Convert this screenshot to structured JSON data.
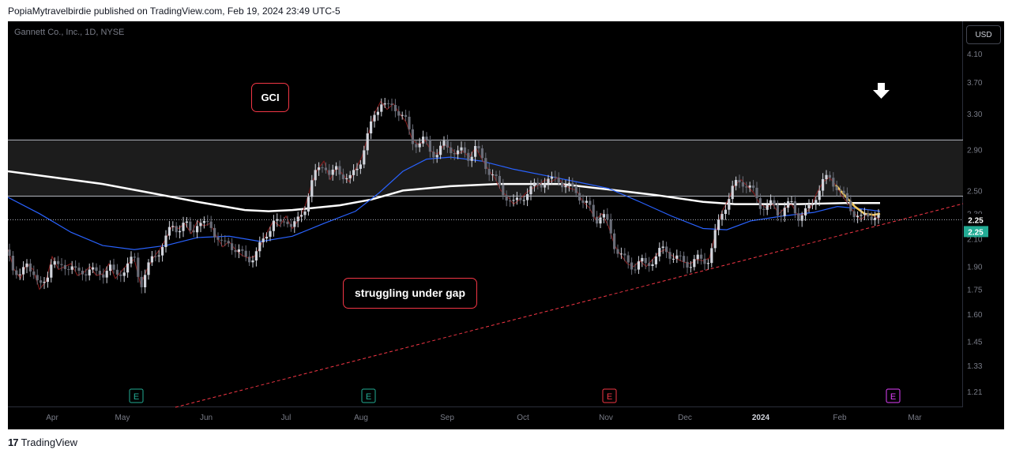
{
  "header": {
    "publish_line": "PopiaMytravelbirdie published on TradingView.com, Feb 19, 2024 23:49 UTC-5"
  },
  "chart_data": {
    "type": "candlestick",
    "title": "Gannett Co., Inc., 1D, NYSE",
    "currency": "USD",
    "x_ticks": [
      "Apr",
      "May",
      "Jun",
      "Jul",
      "Aug",
      "Sep",
      "Oct",
      "Nov",
      "Dec",
      "2024",
      "Feb",
      "Mar"
    ],
    "y_ticks": [
      4.1,
      3.7,
      3.3,
      2.9,
      2.5,
      2.3,
      2.1,
      1.9,
      1.75,
      1.6,
      1.45,
      1.33,
      1.21
    ],
    "y_scale": "log",
    "ylim": [
      1.15,
      4.45
    ],
    "last_price": 2.25,
    "last_price_labels": [
      "2.25",
      "2.25"
    ],
    "annotations": [
      {
        "text": "GCI"
      },
      {
        "text": "struggling under gap"
      }
    ],
    "gap_zone": {
      "upper": 3.0,
      "lower": 2.45
    },
    "trendline": {
      "from": {
        "date": "2023-04-22",
        "price": 1.18
      },
      "to": {
        "date": "2024-02-25",
        "price": 2.38
      }
    },
    "earnings_markers": [
      {
        "date": "2023-05",
        "label": "E",
        "color": "#22ab94"
      },
      {
        "date": "2023-08",
        "label": "E",
        "color": "#22ab94"
      },
      {
        "date": "2023-11",
        "label": "E",
        "color": "#f23645"
      },
      {
        "date": "2024-02-23",
        "label": "E",
        "color": "#e040fb"
      }
    ],
    "close_path": [
      [
        0,
        2.02
      ],
      [
        8,
        1.88
      ],
      [
        16,
        1.82
      ],
      [
        24,
        1.92
      ],
      [
        32,
        1.88
      ],
      [
        40,
        1.75
      ],
      [
        48,
        1.8
      ],
      [
        56,
        1.97
      ],
      [
        64,
        1.88
      ],
      [
        72,
        1.9
      ],
      [
        80,
        1.92
      ],
      [
        88,
        1.84
      ],
      [
        96,
        1.86
      ],
      [
        104,
        1.9
      ],
      [
        112,
        1.84
      ],
      [
        120,
        1.85
      ],
      [
        128,
        1.92
      ],
      [
        136,
        1.82
      ],
      [
        144,
        1.87
      ],
      [
        152,
        1.92
      ],
      [
        160,
        1.95
      ],
      [
        168,
        1.78
      ],
      [
        176,
        1.88
      ],
      [
        184,
        1.96
      ],
      [
        192,
        2.02
      ],
      [
        200,
        2.1
      ],
      [
        208,
        2.2
      ],
      [
        216,
        2.18
      ],
      [
        224,
        2.22
      ],
      [
        232,
        2.14
      ],
      [
        240,
        2.24
      ],
      [
        248,
        2.2
      ],
      [
        256,
        2.22
      ],
      [
        264,
        2.12
      ],
      [
        272,
        2.04
      ],
      [
        280,
        2.08
      ],
      [
        288,
        2.02
      ],
      [
        296,
        1.98
      ],
      [
        304,
        1.96
      ],
      [
        312,
        1.97
      ],
      [
        320,
        2.05
      ],
      [
        328,
        2.15
      ],
      [
        336,
        2.24
      ],
      [
        344,
        2.2
      ],
      [
        352,
        2.28
      ],
      [
        360,
        2.18
      ],
      [
        368,
        2.25
      ],
      [
        376,
        2.36
      ],
      [
        384,
        2.55
      ],
      [
        392,
        2.7
      ],
      [
        400,
        2.78
      ],
      [
        408,
        2.6
      ],
      [
        416,
        2.72
      ],
      [
        424,
        2.65
      ],
      [
        432,
        2.58
      ],
      [
        440,
        2.7
      ],
      [
        448,
        2.82
      ],
      [
        456,
        3.05
      ],
      [
        464,
        3.3
      ],
      [
        472,
        3.45
      ],
      [
        480,
        3.35
      ],
      [
        488,
        3.42
      ],
      [
        496,
        3.3
      ],
      [
        504,
        3.2
      ],
      [
        512,
        3.0
      ],
      [
        520,
        2.95
      ],
      [
        528,
        3.0
      ],
      [
        536,
        2.88
      ],
      [
        544,
        2.85
      ],
      [
        552,
        2.95
      ],
      [
        560,
        2.92
      ],
      [
        568,
        2.85
      ],
      [
        576,
        2.88
      ],
      [
        584,
        2.82
      ],
      [
        592,
        2.92
      ],
      [
        600,
        2.8
      ],
      [
        608,
        2.7
      ],
      [
        616,
        2.62
      ],
      [
        624,
        2.5
      ],
      [
        632,
        2.45
      ],
      [
        640,
        2.38
      ],
      [
        648,
        2.42
      ],
      [
        656,
        2.48
      ],
      [
        664,
        2.52
      ],
      [
        672,
        2.55
      ],
      [
        680,
        2.6
      ],
      [
        688,
        2.58
      ],
      [
        696,
        2.62
      ],
      [
        704,
        2.55
      ],
      [
        712,
        2.52
      ],
      [
        720,
        2.5
      ],
      [
        728,
        2.4
      ],
      [
        736,
        2.35
      ],
      [
        744,
        2.25
      ],
      [
        752,
        2.3
      ],
      [
        760,
        2.2
      ],
      [
        768,
        2.05
      ],
      [
        776,
        1.98
      ],
      [
        784,
        1.92
      ],
      [
        792,
        1.9
      ],
      [
        800,
        1.94
      ],
      [
        808,
        1.9
      ],
      [
        816,
        1.95
      ],
      [
        824,
        2.0
      ],
      [
        832,
        2.02
      ],
      [
        840,
        1.98
      ],
      [
        848,
        1.95
      ],
      [
        856,
        1.93
      ],
      [
        864,
        1.92
      ],
      [
        872,
        1.95
      ],
      [
        880,
        1.94
      ],
      [
        888,
        1.96
      ],
      [
        896,
        2.15
      ],
      [
        904,
        2.32
      ],
      [
        912,
        2.42
      ],
      [
        920,
        2.55
      ],
      [
        928,
        2.6
      ],
      [
        936,
        2.54
      ],
      [
        944,
        2.48
      ],
      [
        952,
        2.38
      ],
      [
        960,
        2.35
      ],
      [
        968,
        2.38
      ],
      [
        976,
        2.3
      ],
      [
        984,
        2.35
      ],
      [
        992,
        2.38
      ],
      [
        1000,
        2.28
      ],
      [
        1008,
        2.3
      ],
      [
        1016,
        2.35
      ],
      [
        1024,
        2.48
      ],
      [
        1032,
        2.58
      ],
      [
        1040,
        2.62
      ],
      [
        1048,
        2.55
      ],
      [
        1056,
        2.45
      ],
      [
        1064,
        2.38
      ],
      [
        1072,
        2.3
      ],
      [
        1080,
        2.25
      ],
      [
        1088,
        2.3
      ],
      [
        1096,
        2.28
      ],
      [
        1104,
        2.25
      ]
    ],
    "ma_white": [
      [
        0,
        2.68
      ],
      [
        60,
        2.62
      ],
      [
        120,
        2.56
      ],
      [
        180,
        2.48
      ],
      [
        240,
        2.4
      ],
      [
        300,
        2.33
      ],
      [
        330,
        2.32
      ],
      [
        360,
        2.33
      ],
      [
        420,
        2.37
      ],
      [
        460,
        2.42
      ],
      [
        500,
        2.5
      ],
      [
        560,
        2.54
      ],
      [
        620,
        2.56
      ],
      [
        700,
        2.56
      ],
      [
        760,
        2.51
      ],
      [
        820,
        2.46
      ],
      [
        880,
        2.4
      ],
      [
        920,
        2.38
      ],
      [
        1000,
        2.38
      ],
      [
        1060,
        2.39
      ],
      [
        1104,
        2.39
      ]
    ],
    "ma_blue": [
      [
        0,
        2.44
      ],
      [
        40,
        2.3
      ],
      [
        80,
        2.15
      ],
      [
        120,
        2.05
      ],
      [
        160,
        2.02
      ],
      [
        200,
        2.05
      ],
      [
        240,
        2.11
      ],
      [
        280,
        2.12
      ],
      [
        320,
        2.08
      ],
      [
        360,
        2.12
      ],
      [
        400,
        2.22
      ],
      [
        440,
        2.32
      ],
      [
        470,
        2.48
      ],
      [
        500,
        2.68
      ],
      [
        530,
        2.8
      ],
      [
        560,
        2.82
      ],
      [
        600,
        2.78
      ],
      [
        640,
        2.7
      ],
      [
        680,
        2.64
      ],
      [
        720,
        2.58
      ],
      [
        760,
        2.52
      ],
      [
        800,
        2.4
      ],
      [
        840,
        2.28
      ],
      [
        880,
        2.18
      ],
      [
        910,
        2.17
      ],
      [
        940,
        2.24
      ],
      [
        980,
        2.28
      ],
      [
        1020,
        2.31
      ],
      [
        1050,
        2.36
      ],
      [
        1080,
        2.34
      ],
      [
        1104,
        2.32
      ]
    ],
    "ma_yellow": [
      [
        1048,
        2.55
      ],
      [
        1060,
        2.45
      ],
      [
        1072,
        2.36
      ],
      [
        1084,
        2.3
      ],
      [
        1096,
        2.29
      ],
      [
        1104,
        2.3
      ]
    ]
  }
}
